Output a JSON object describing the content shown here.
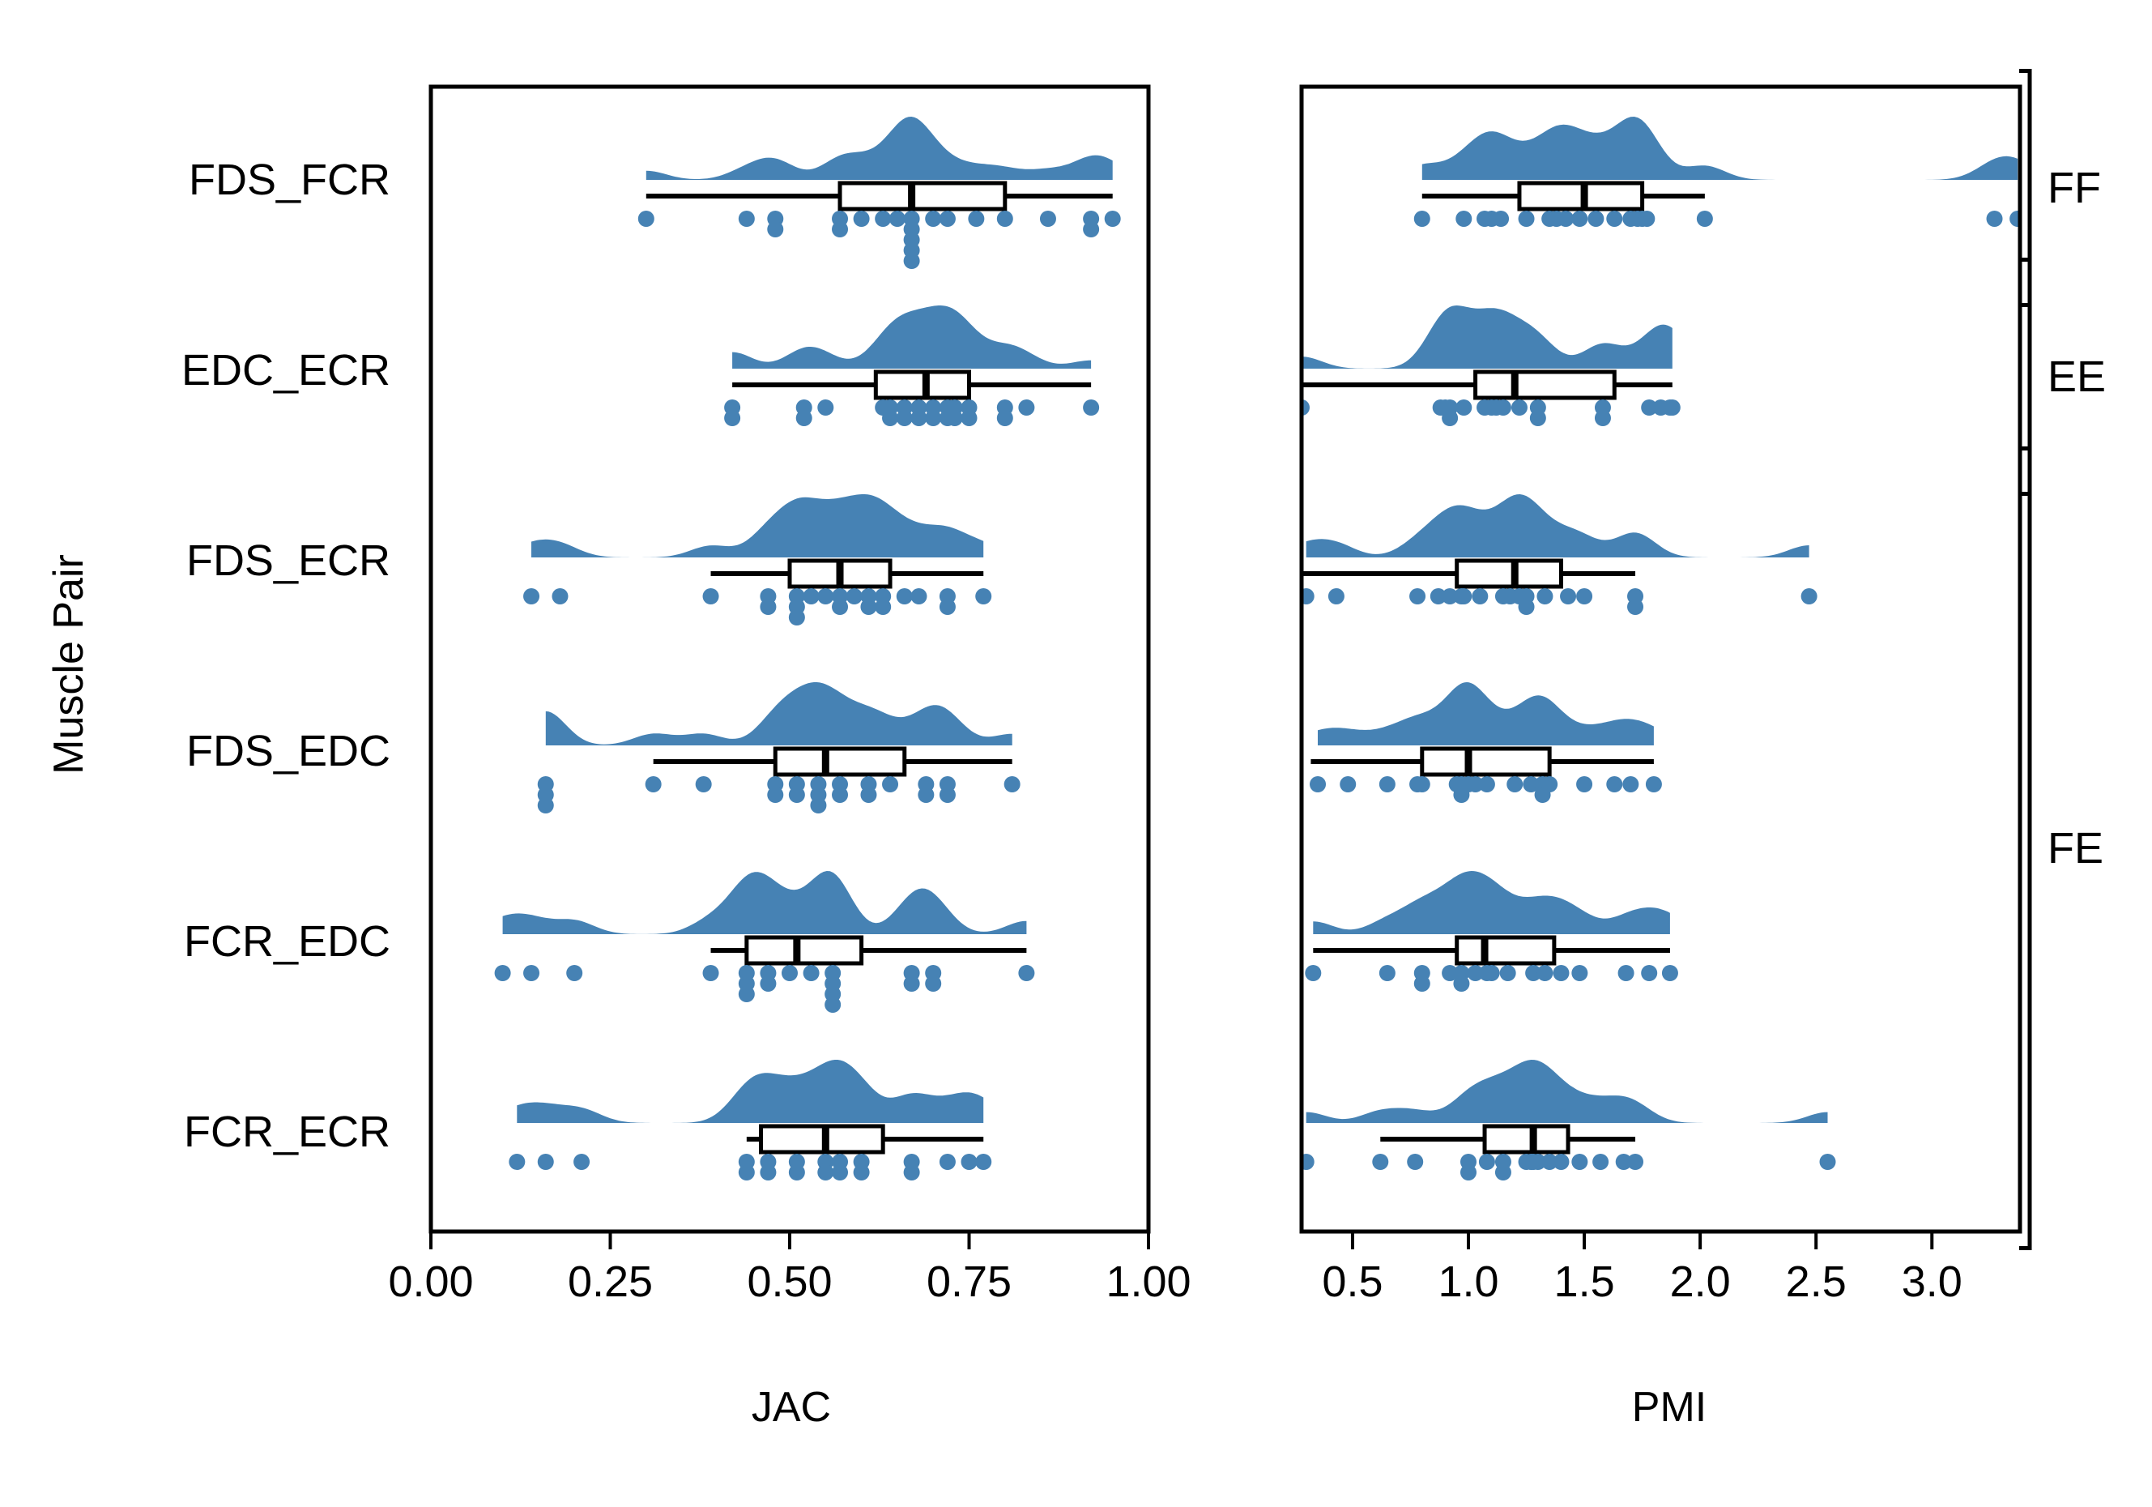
{
  "chart_data": {
    "type": "raincloud",
    "ylabel": "Muscle Pair",
    "categories": [
      "FDS_FCR",
      "EDC_ECR",
      "FDS_ECR",
      "FDS_EDC",
      "FCR_EDC",
      "FCR_ECR"
    ],
    "colors": {
      "fill": "#4682B4",
      "box_fill": "#ffffff",
      "line": "#000000"
    },
    "groups": [
      {
        "label": "FF",
        "categories": [
          "FDS_FCR"
        ]
      },
      {
        "label": "EE",
        "categories": [
          "EDC_ECR"
        ]
      },
      {
        "label": "FE",
        "categories": [
          "FDS_ECR",
          "FDS_EDC",
          "FCR_EDC",
          "FCR_ECR"
        ]
      }
    ],
    "panels": [
      {
        "xlabel": "JAC",
        "xlim": [
          0,
          1
        ],
        "ticks": [
          "0.00",
          "0.25",
          "0.50",
          "0.75",
          "1.00"
        ],
        "tick_values": [
          0,
          0.25,
          0.5,
          0.75,
          1.0
        ],
        "series": [
          {
            "category": "FDS_FCR",
            "points": [
              0.3,
              0.44,
              0.48,
              0.48,
              0.57,
              0.57,
              0.6,
              0.63,
              0.65,
              0.67,
              0.67,
              0.67,
              0.67,
              0.67,
              0.7,
              0.72,
              0.76,
              0.8,
              0.86,
              0.92,
              0.92,
              0.95
            ],
            "box": {
              "min": 0.3,
              "q1": 0.57,
              "median": 0.67,
              "q3": 0.8,
              "max": 0.95
            }
          },
          {
            "category": "EDC_ECR",
            "points": [
              0.42,
              0.42,
              0.52,
              0.52,
              0.55,
              0.63,
              0.64,
              0.64,
              0.66,
              0.66,
              0.68,
              0.68,
              0.7,
              0.7,
              0.72,
              0.72,
              0.73,
              0.73,
              0.75,
              0.75,
              0.8,
              0.8,
              0.83,
              0.92
            ],
            "box": {
              "min": 0.42,
              "q1": 0.62,
              "median": 0.69,
              "q3": 0.75,
              "max": 0.92
            }
          },
          {
            "category": "FDS_ECR",
            "points": [
              0.14,
              0.18,
              0.39,
              0.47,
              0.47,
              0.51,
              0.51,
              0.51,
              0.53,
              0.55,
              0.57,
              0.57,
              0.59,
              0.61,
              0.61,
              0.63,
              0.63,
              0.66,
              0.68,
              0.72,
              0.72,
              0.77
            ],
            "box": {
              "min": 0.39,
              "q1": 0.5,
              "median": 0.57,
              "q3": 0.64,
              "max": 0.77
            }
          },
          {
            "category": "FDS_EDC",
            "points": [
              0.16,
              0.16,
              0.16,
              0.31,
              0.38,
              0.48,
              0.48,
              0.51,
              0.51,
              0.54,
              0.54,
              0.54,
              0.57,
              0.57,
              0.61,
              0.61,
              0.64,
              0.69,
              0.69,
              0.72,
              0.72,
              0.81
            ],
            "box": {
              "min": 0.31,
              "q1": 0.48,
              "median": 0.55,
              "q3": 0.66,
              "max": 0.81
            }
          },
          {
            "category": "FCR_EDC",
            "points": [
              0.1,
              0.14,
              0.2,
              0.39,
              0.44,
              0.44,
              0.44,
              0.47,
              0.47,
              0.5,
              0.53,
              0.56,
              0.56,
              0.56,
              0.56,
              0.67,
              0.67,
              0.7,
              0.7,
              0.83
            ],
            "box": {
              "min": 0.39,
              "q1": 0.44,
              "median": 0.51,
              "q3": 0.6,
              "max": 0.83
            }
          },
          {
            "category": "FCR_ECR",
            "points": [
              0.12,
              0.16,
              0.21,
              0.44,
              0.44,
              0.47,
              0.47,
              0.51,
              0.51,
              0.55,
              0.55,
              0.57,
              0.57,
              0.6,
              0.6,
              0.67,
              0.67,
              0.72,
              0.75,
              0.77
            ],
            "box": {
              "min": 0.44,
              "q1": 0.46,
              "median": 0.55,
              "q3": 0.63,
              "max": 0.77
            }
          }
        ]
      },
      {
        "xlabel": "PMI",
        "xlim": [
          0.28,
          3.38
        ],
        "ticks": [
          "0.5",
          "1.0",
          "1.5",
          "2.0",
          "2.5",
          "3.0"
        ],
        "tick_values": [
          0.5,
          1.0,
          1.5,
          2.0,
          2.5,
          3.0
        ],
        "series": [
          {
            "category": "FDS_FCR",
            "points": [
              0.8,
              0.98,
              1.07,
              1.1,
              1.14,
              1.25,
              1.35,
              1.38,
              1.42,
              1.48,
              1.55,
              1.63,
              1.7,
              1.73,
              1.75,
              1.77,
              2.02,
              3.27,
              3.37
            ],
            "box": {
              "min": 0.8,
              "q1": 1.22,
              "median": 1.5,
              "q3": 1.75,
              "max": 2.02
            }
          },
          {
            "category": "EDC_ECR",
            "points": [
              0.28,
              0.88,
              0.9,
              0.92,
              0.92,
              0.98,
              1.07,
              1.1,
              1.12,
              1.15,
              1.22,
              1.3,
              1.3,
              1.58,
              1.58,
              1.78,
              1.83,
              1.87,
              1.88
            ],
            "box": {
              "min": 0.28,
              "q1": 1.03,
              "median": 1.2,
              "q3": 1.63,
              "max": 1.88
            }
          },
          {
            "category": "FDS_ECR",
            "points": [
              0.3,
              0.43,
              0.78,
              0.87,
              0.92,
              0.97,
              0.98,
              1.05,
              1.15,
              1.18,
              1.22,
              1.25,
              1.25,
              1.33,
              1.43,
              1.5,
              1.72,
              1.72,
              2.47
            ],
            "box": {
              "min": 0.28,
              "q1": 0.95,
              "median": 1.2,
              "q3": 1.4,
              "max": 1.72
            }
          },
          {
            "category": "FDS_EDC",
            "points": [
              0.35,
              0.48,
              0.65,
              0.78,
              0.8,
              0.95,
              0.97,
              0.97,
              1.0,
              1.03,
              1.08,
              1.2,
              1.27,
              1.32,
              1.32,
              1.35,
              1.5,
              1.63,
              1.7,
              1.8
            ],
            "box": {
              "min": 0.32,
              "q1": 0.8,
              "median": 1.0,
              "q3": 1.35,
              "max": 1.8
            }
          },
          {
            "category": "FCR_EDC",
            "points": [
              0.33,
              0.65,
              0.8,
              0.8,
              0.92,
              0.97,
              0.97,
              1.03,
              1.08,
              1.1,
              1.17,
              1.28,
              1.33,
              1.4,
              1.48,
              1.68,
              1.78,
              1.87
            ],
            "box": {
              "min": 0.33,
              "q1": 0.95,
              "median": 1.07,
              "q3": 1.37,
              "max": 1.87
            }
          },
          {
            "category": "FCR_ECR",
            "points": [
              0.3,
              0.62,
              0.77,
              1.0,
              1.0,
              1.08,
              1.15,
              1.15,
              1.25,
              1.27,
              1.28,
              1.3,
              1.35,
              1.4,
              1.48,
              1.57,
              1.67,
              1.72,
              2.55
            ],
            "box": {
              "min": 0.62,
              "q1": 1.07,
              "median": 1.28,
              "q3": 1.43,
              "max": 1.72
            }
          }
        ]
      }
    ]
  }
}
